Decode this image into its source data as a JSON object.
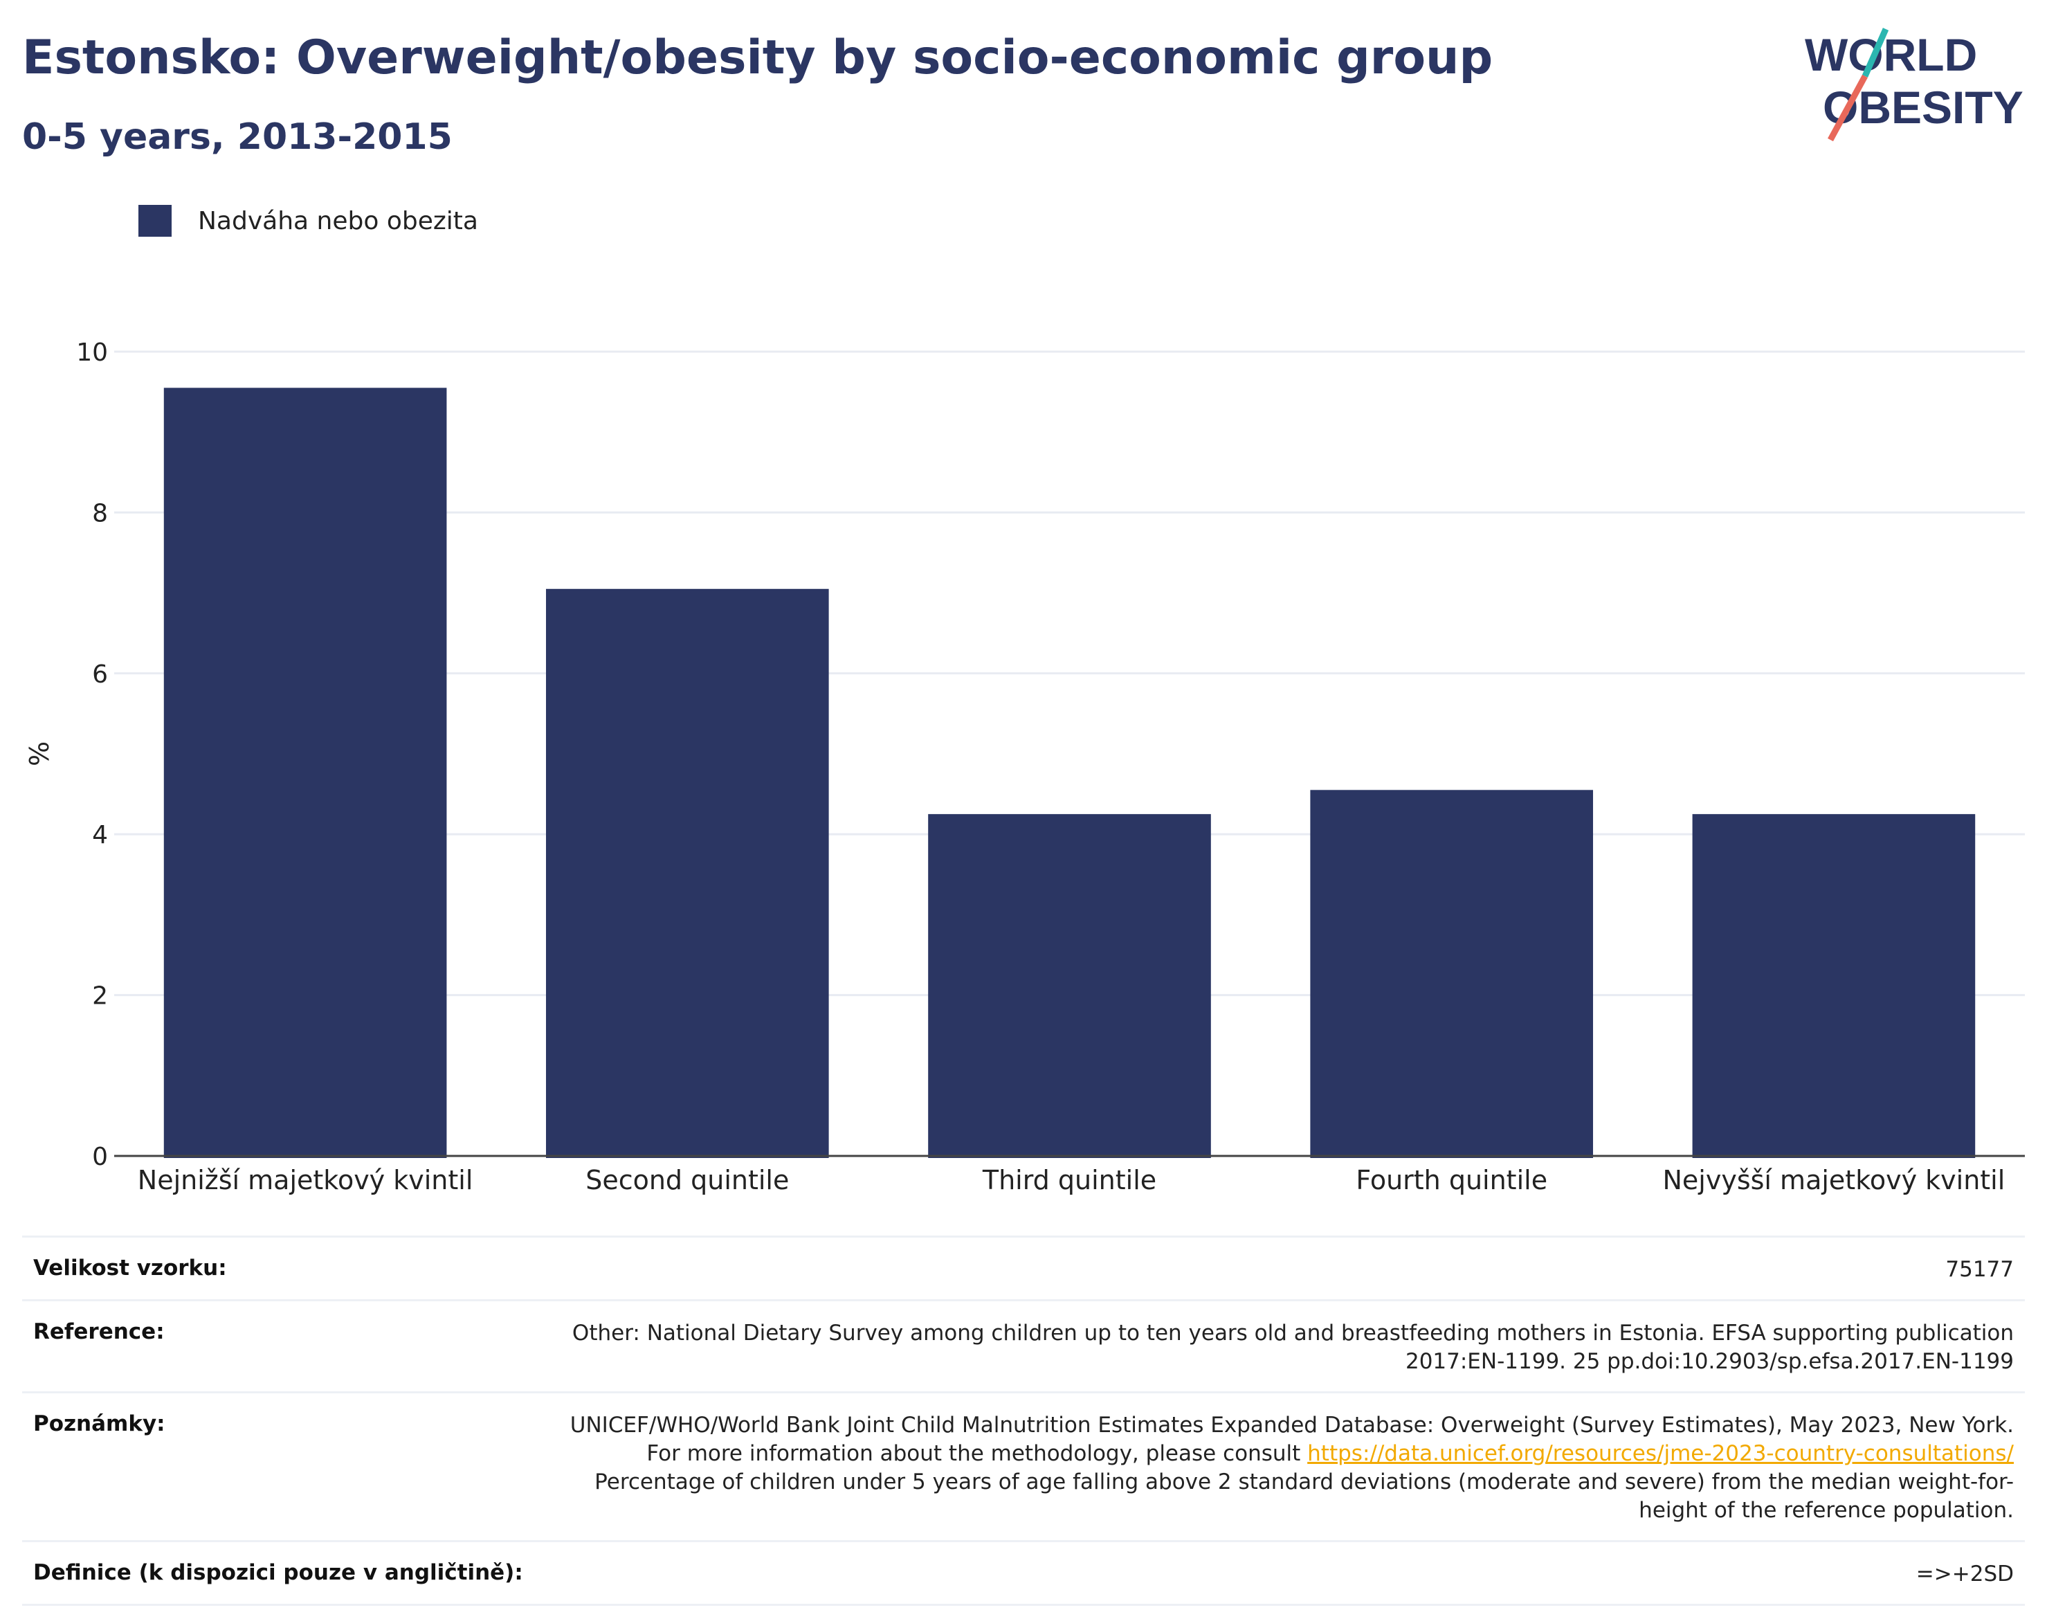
{
  "header": {
    "title": "Estonsko: Overweight/obesity by socio-economic group",
    "subtitle": "0-5 years, 2013-2015"
  },
  "logo": {
    "line1": "WORLD",
    "line2": "OBESITY"
  },
  "legend": {
    "label": "Nadváha nebo obezita",
    "color": "#2b3663"
  },
  "chart_data": {
    "type": "bar",
    "categories": [
      "Nejnižší majetkový kvintil",
      "Second quintile",
      "Third quintile",
      "Fourth quintile",
      "Nejvyšší majetkový kvintil"
    ],
    "series": [
      {
        "name": "Nadváha nebo obezita",
        "values": [
          9.55,
          7.05,
          4.25,
          4.55,
          4.25
        ]
      }
    ],
    "ylabel": "%",
    "ylim": [
      0,
      10
    ],
    "yticks": [
      0,
      2,
      4,
      6,
      8,
      10
    ],
    "grid": true,
    "bar_color": "#2b3663",
    "legend_position": "top-left"
  },
  "meta": {
    "sample": {
      "label": "Velikost vzorku:",
      "value": "75177"
    },
    "reference": {
      "label": "Reference:",
      "value": "Other: National Dietary Survey among children up to ten years old and breastfeeding mothers in Estonia. EFSA supporting publication 2017:EN-1199. 25 pp.doi:10.2903/sp.efsa.2017.EN-1199"
    },
    "notes": {
      "label": "Poznámky:",
      "text_before": "UNICEF/WHO/World Bank Joint Child Malnutrition Estimates Expanded Database: Overweight (Survey Estimates), May 2023, New York. For more information about the methodology, please consult ",
      "link": "https://data.unicef.org/resources/jme-2023-country-consultations/",
      "text_after": " Percentage of children under 5 years of age falling above 2 standard deviations (moderate and severe) from the median weight-for-height of the reference population."
    },
    "definition": {
      "label": "Definice (k dispozici pouze v angličtině):",
      "value": "=>+2SD"
    }
  }
}
